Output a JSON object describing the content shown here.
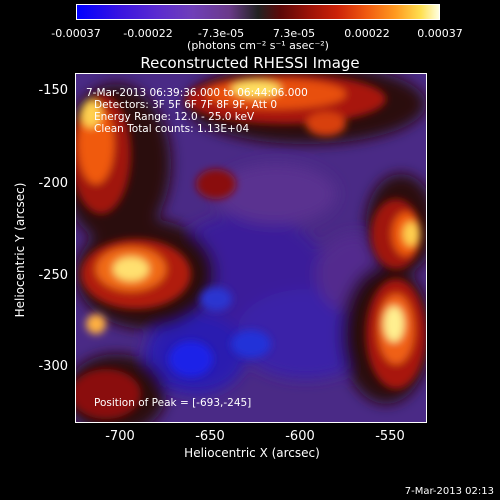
{
  "colorbar": {
    "ticks": [
      "-0.00037",
      "-0.00022",
      "-7.3e-05",
      "7.3e-05",
      "0.00022",
      "0.00037"
    ],
    "unit": "(photons cm⁻² s⁻¹ asec⁻²)"
  },
  "title": "Reconstructed RHESSI Image",
  "info": {
    "time": "7-Mar-2013 06:39:36.000 to 06:44:06.000",
    "detectors": "Detectors: 3F 5F 6F 7F 8F 9F, Att 0",
    "energy": "Energy Range: 12.0 - 25.0 keV",
    "clean": "Clean    Total counts: 1.13E+04"
  },
  "peak": "Position of Peak = [-693,-245]",
  "axes": {
    "xlabel": "Heliocentric X (arcsec)",
    "ylabel": "Heliocentric Y (arcsec)",
    "xticks": [
      "-700",
      "-650",
      "-600",
      "-550"
    ],
    "yticks": [
      "-150",
      "-200",
      "-250",
      "-300"
    ]
  },
  "timestamp": "7-Mar-2013 02:13"
}
